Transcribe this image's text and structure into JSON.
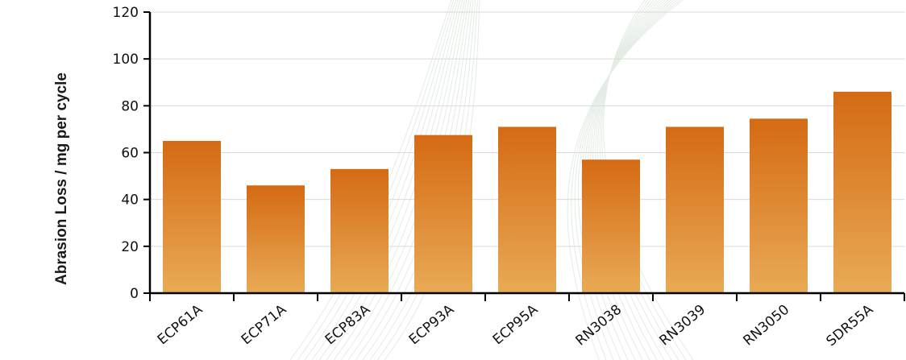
{
  "chart_data": {
    "type": "bar",
    "title": "",
    "xlabel": "",
    "ylabel": "Abrasion Loss / mg per cycle",
    "categories": [
      "ECP61A",
      "ECP71A",
      "ECP83A",
      "ECP93A",
      "ECP95A",
      "RN3038",
      "RN3039",
      "RN3050",
      "SDR55A"
    ],
    "values": [
      65,
      46,
      53,
      67.5,
      71,
      57,
      71,
      74.5,
      86
    ],
    "ylim": [
      0,
      120
    ],
    "yticks": [
      0,
      20,
      40,
      60,
      80,
      100,
      120
    ],
    "grid": true,
    "legend": "none",
    "colors": {
      "bar_top": "#d56a14",
      "bar_bottom": "#e9aa55",
      "grid": "#d9d9d9",
      "axis": "#000000"
    }
  }
}
